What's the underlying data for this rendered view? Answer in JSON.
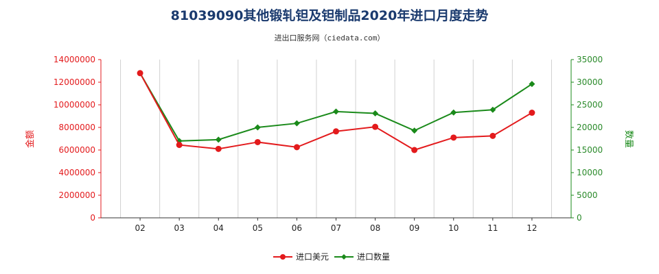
{
  "title": "81039090其他锻轧钽及钽制品2020年进口月度走势",
  "subtitle": "进出口服务网（ciedata.com）",
  "colors": {
    "amount": "#e31a1c",
    "quantity": "#1a8a1a",
    "title": "#1a3a6e"
  },
  "chart_data": {
    "type": "line",
    "title": "81039090其他锻轧钽及钽制品2020年进口月度走势",
    "categories": [
      "02",
      "03",
      "04",
      "05",
      "06",
      "07",
      "08",
      "09",
      "10",
      "11",
      "12"
    ],
    "y_left": {
      "label": "金额",
      "ylim": [
        0,
        14000000
      ],
      "ticks": [
        "0",
        "2000000",
        "4000000",
        "6000000",
        "8000000",
        "10000000",
        "12000000",
        "14000000"
      ]
    },
    "y_right": {
      "label": "数量",
      "ylim": [
        0,
        35000
      ],
      "ticks": [
        "0",
        "5000",
        "10000",
        "15000",
        "20000",
        "25000",
        "30000",
        "35000"
      ]
    },
    "series": [
      {
        "name": "进口美元",
        "axis": "left",
        "values": [
          12800000,
          6450000,
          6100000,
          6700000,
          6250000,
          7650000,
          8050000,
          6000000,
          7100000,
          7250000,
          9300000
        ]
      },
      {
        "name": "进口数量",
        "axis": "right",
        "values": [
          32000,
          17000,
          17300,
          20000,
          20900,
          23500,
          23100,
          19300,
          23300,
          23900,
          29600
        ]
      }
    ],
    "legend": "bottom-center",
    "grid": "vertical"
  }
}
